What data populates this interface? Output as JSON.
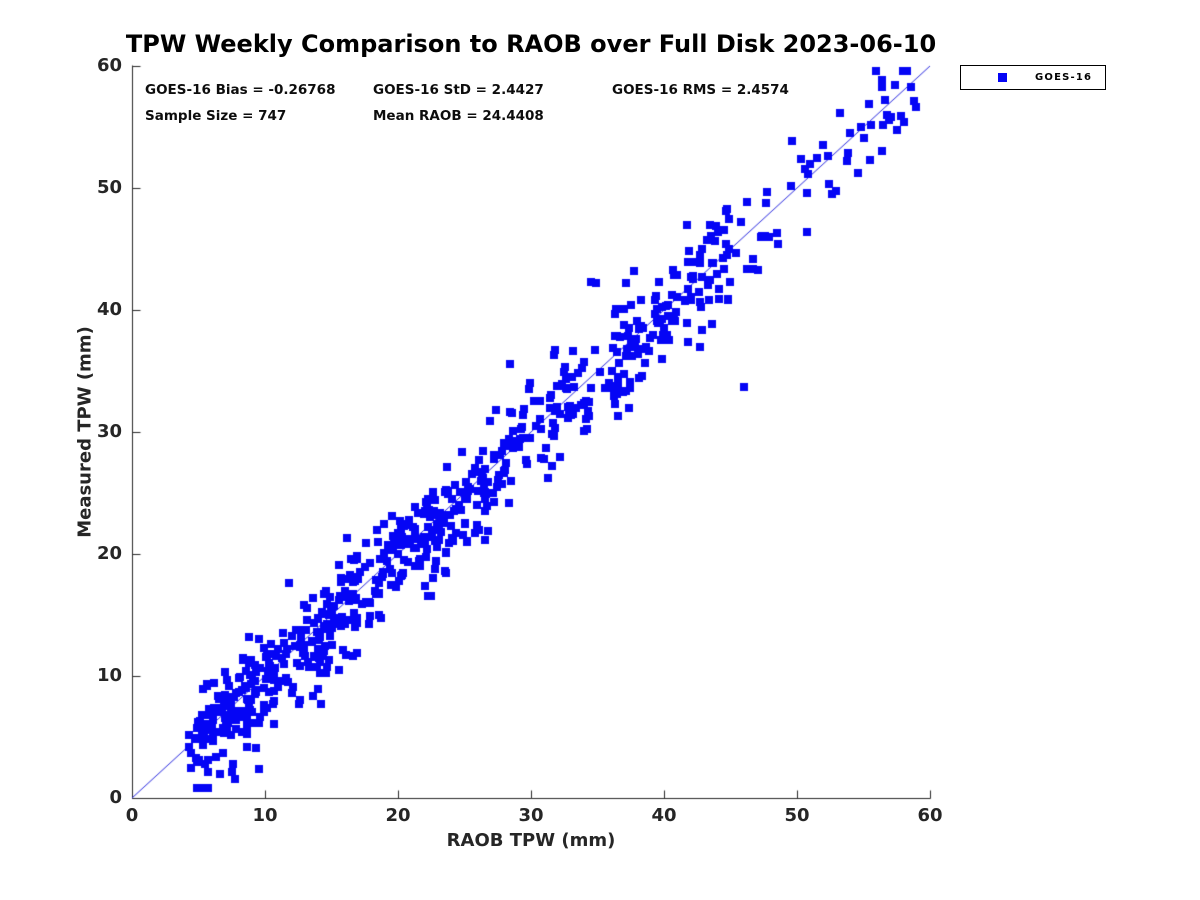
{
  "chart_data": {
    "type": "scatter",
    "title": "TPW Weekly Comparison to RAOB over Full Disk 2023-06-10",
    "xlabel": "RAOB TPW (mm)",
    "ylabel": "Measured TPW (mm)",
    "xlim": [
      0,
      60
    ],
    "ylim": [
      0,
      60
    ],
    "xticks": [
      0,
      10,
      20,
      30,
      40,
      50,
      60
    ],
    "yticks": [
      0,
      10,
      20,
      30,
      40,
      50,
      60
    ],
    "grid": false,
    "background_color": "#ffffff",
    "axis_color": "#262626",
    "stats": {
      "bias": "GOES-16 Bias = -0.26768",
      "std": "GOES-16 StD = 2.4427",
      "rms": "GOES-16 RMS = 2.4574",
      "sample_size": "Sample Size = 747",
      "mean_raob": "Mean RAOB = 24.4408"
    },
    "reference_line": {
      "from": [
        0,
        0
      ],
      "to": [
        60,
        60
      ],
      "color": "#2a2ae0",
      "width": 1
    },
    "legend": {
      "position": "outside-top-right",
      "border_color": "#000000",
      "background": "#ffffff"
    },
    "series": [
      {
        "name": "GOES-16",
        "marker": "square",
        "marker_color": "#0505f5",
        "marker_size_px": 8,
        "n_points": 747,
        "sample_points": [
          [
            4.3,
            5.2
          ],
          [
            4.7,
            4.8
          ],
          [
            5.1,
            6.3
          ],
          [
            5.4,
            5.0
          ],
          [
            6.2,
            7.4
          ],
          [
            10.7,
            6.1
          ],
          [
            22.0,
            17.4
          ],
          [
            28.4,
            35.6
          ],
          [
            34.5,
            42.3
          ],
          [
            34.9,
            42.2
          ],
          [
            46.0,
            33.7
          ],
          [
            45.8,
            47.2
          ],
          [
            43.9,
            46.9
          ],
          [
            50.3,
            52.4
          ],
          [
            52.3,
            52.6
          ],
          [
            53.8,
            52.9
          ],
          [
            54.6,
            51.2
          ],
          [
            56.5,
            55.2
          ],
          [
            56.6,
            57.2
          ],
          [
            57.1,
            55.8
          ],
          [
            58.6,
            58.3
          ],
          [
            58.8,
            57.1
          ]
        ],
        "point_generator": {
          "seed": 20230610,
          "bias": -0.26768,
          "noise_std": 2.3,
          "max_abs_deviation": 7.2,
          "x_bands": [
            {
              "range": [
                4.2,
                24.0
              ],
              "weight": 0.57
            },
            {
              "range": [
                24.0,
                45.0
              ],
              "weight": 0.37
            },
            {
              "range": [
                45.0,
                59.0
              ],
              "weight": 0.06
            }
          ],
          "y_range_clamp": [
            0.8,
            59.6
          ]
        }
      }
    ]
  }
}
